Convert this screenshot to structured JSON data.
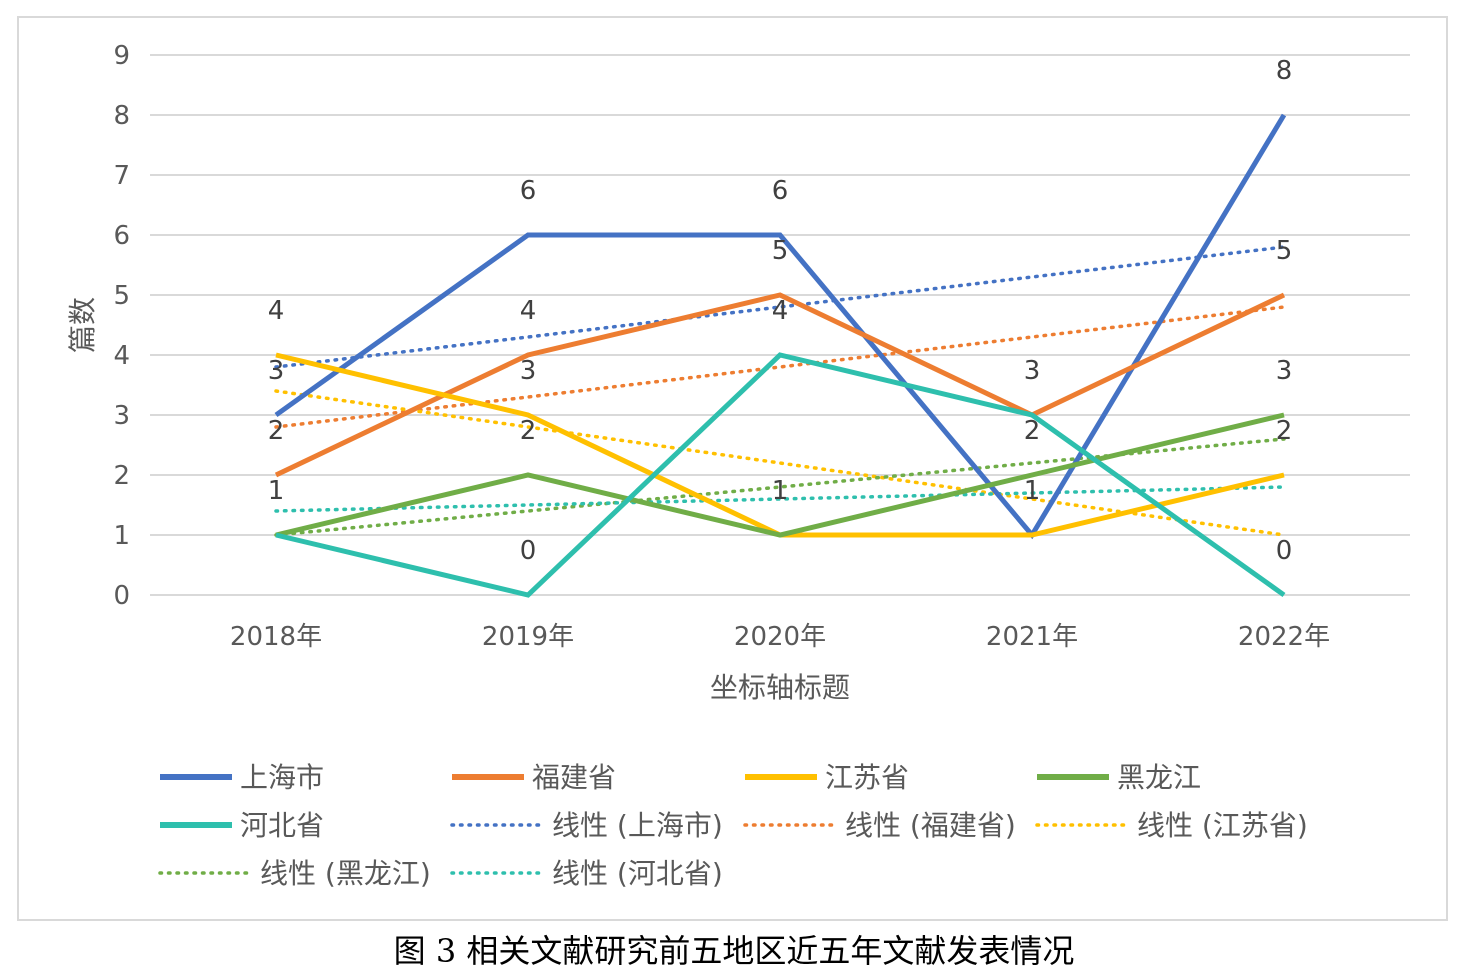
{
  "caption": "图 3  相关文献研究前五地区近五年文献发表情况",
  "chart_data": {
    "type": "line",
    "title": "",
    "xlabel": "坐标轴标题",
    "ylabel": "篇数",
    "ylim": [
      0,
      9
    ],
    "yticks": [
      0,
      1,
      2,
      3,
      4,
      5,
      6,
      7,
      8,
      9
    ],
    "grid": true,
    "legend_position": "bottom",
    "categories": [
      "2018年",
      "2019年",
      "2020年",
      "2021年",
      "2022年"
    ],
    "series": [
      {
        "name": "上海市",
        "values": [
          3,
          6,
          6,
          1,
          8
        ],
        "color": "#4472c4"
      },
      {
        "name": "福建省",
        "values": [
          2,
          4,
          5,
          3,
          5
        ],
        "color": "#ed7d31"
      },
      {
        "name": "江苏省",
        "values": [
          4,
          3,
          1,
          1,
          2
        ],
        "color": "#ffc000"
      },
      {
        "name": "黑龙江",
        "values": [
          1,
          2,
          1,
          2,
          3
        ],
        "color": "#70ad47"
      },
      {
        "name": "河北省",
        "values": [
          1,
          0,
          4,
          3,
          0
        ],
        "color": "#2ebfad"
      }
    ],
    "trendlines": [
      {
        "name": "线性 (上海市)",
        "type": "linear",
        "color": "#4472c4"
      },
      {
        "name": "线性 (福建省)",
        "type": "linear",
        "color": "#ed7d31"
      },
      {
        "name": "线性 (江苏省)",
        "type": "linear",
        "color": "#ffc000"
      },
      {
        "name": "线性 (黑龙江)",
        "type": "linear",
        "color": "#70ad47"
      },
      {
        "name": "线性 (河北省)",
        "type": "linear",
        "color": "#2ebfad"
      }
    ],
    "data_labels": [
      {
        "category": "2018年",
        "labels": [
          "4",
          "3",
          "2",
          "1"
        ]
      },
      {
        "category": "2019年",
        "labels": [
          "6",
          "4",
          "3",
          "2",
          "0"
        ]
      },
      {
        "category": "2020年",
        "labels": [
          "6",
          "5",
          "4",
          "1"
        ]
      },
      {
        "category": "2021年",
        "labels": [
          "3",
          "2",
          "1"
        ]
      },
      {
        "category": "2022年",
        "labels": [
          "8",
          "5",
          "3",
          "2",
          "0"
        ]
      }
    ]
  }
}
